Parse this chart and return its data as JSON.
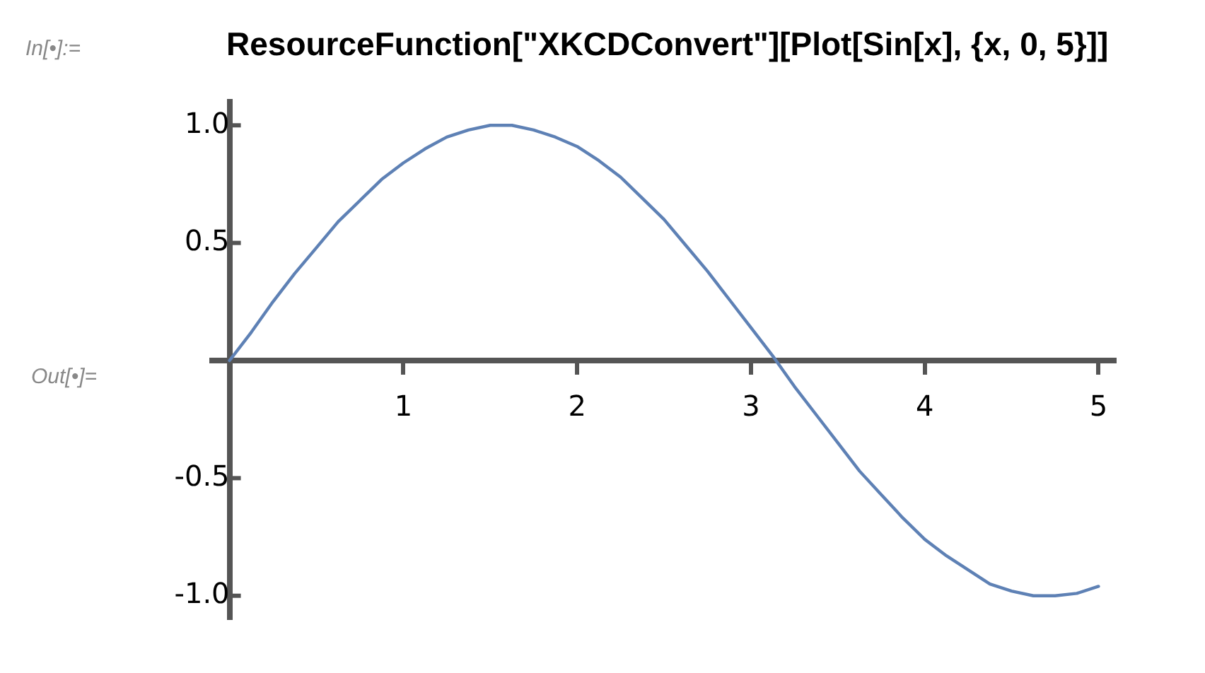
{
  "chart_data": {
    "type": "line",
    "title": "ResourceFunction[\"XKCDConvert\"][Plot[Sin[x], {x, 0, 5}]]",
    "annotations": [
      "In[•]:=",
      "Out[•]="
    ],
    "x": [
      0,
      0.125,
      0.25,
      0.375,
      0.5,
      0.625,
      0.75,
      0.875,
      1,
      1.125,
      1.25,
      1.375,
      1.5,
      1.625,
      1.75,
      1.875,
      2,
      2.125,
      2.25,
      2.375,
      2.5,
      2.625,
      2.75,
      2.875,
      3,
      3.125,
      3.25,
      3.375,
      3.5,
      3.625,
      3.75,
      3.875,
      4,
      4.125,
      4.25,
      4.375,
      4.5,
      4.625,
      4.75,
      4.875,
      5
    ],
    "series": [
      {
        "color": "#5e81b5",
        "values": [
          0,
          0.12,
          0.25,
          0.37,
          0.48,
          0.59,
          0.68,
          0.77,
          0.84,
          0.9,
          0.95,
          0.98,
          1.0,
          1.0,
          0.98,
          0.95,
          0.91,
          0.85,
          0.78,
          0.69,
          0.6,
          0.49,
          0.38,
          0.26,
          0.14,
          0.02,
          -0.11,
          -0.23,
          -0.35,
          -0.47,
          -0.57,
          -0.67,
          -0.76,
          -0.83,
          -0.89,
          -0.95,
          -0.98,
          -1.0,
          -1.0,
          -0.99,
          -0.96
        ]
      }
    ],
    "xlim": [
      -0.1,
      5.1
    ],
    "xticks": [
      1,
      2,
      3,
      4,
      5
    ],
    "ylim": [
      -1.1,
      1.1
    ],
    "yticks": [
      {
        "value": -1,
        "label": "-1.0"
      },
      {
        "value": -0.5,
        "label": "-0.5"
      },
      {
        "value": 0.5,
        "label": "0.5"
      },
      {
        "value": 1,
        "label": "1.0"
      }
    ],
    "grid": false,
    "legend": false,
    "marker": "none",
    "line_style": "solid"
  }
}
